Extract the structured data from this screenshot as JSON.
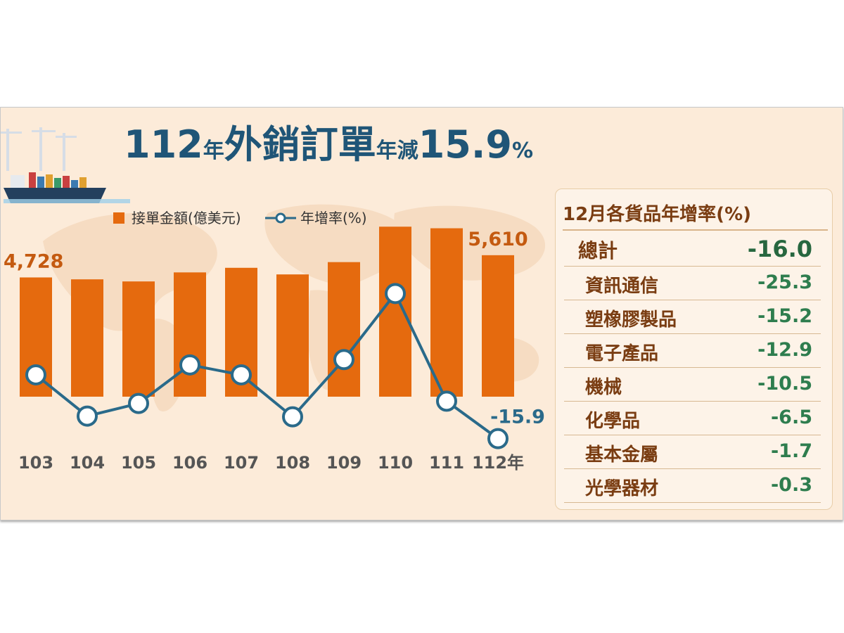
{
  "title": {
    "year": "112",
    "year_suffix": "年",
    "main": "外銷訂單",
    "mid": "年減",
    "rate": "15.9",
    "pct": "%"
  },
  "legend": {
    "bar_label": "接單金額(億美元)",
    "line_label": "年增率(%)"
  },
  "colors": {
    "bar": "#e56a0e",
    "line": "#2a6a8a",
    "title": "#1f5577",
    "value_label": "#c45a10",
    "panel_text": "#7a3d12",
    "panel_value": "#2e7d4e",
    "background": "#fcebd9"
  },
  "chart_data": {
    "type": "bar",
    "categories": [
      "103",
      "104",
      "105",
      "106",
      "107",
      "108",
      "109",
      "110",
      "111",
      "112年"
    ],
    "series": [
      {
        "name": "接單金額(億美元)",
        "type": "bar",
        "values": [
          4728,
          4653,
          4570,
          4928,
          5110,
          4848,
          5336,
          6741,
          6678,
          5610
        ]
      },
      {
        "name": "年增率(%)",
        "type": "line",
        "values": [
          0.8,
          -10.0,
          -6.7,
          3.4,
          0.8,
          -10.2,
          4.8,
          22.1,
          -6.1,
          -15.9
        ]
      }
    ],
    "data_labels": [
      {
        "series": 0,
        "index": 0,
        "text": "4,728"
      },
      {
        "series": 0,
        "index": 9,
        "text": "5,610"
      },
      {
        "series": 1,
        "index": 9,
        "text": "-15.9"
      }
    ],
    "bar_ylim": [
      0,
      7000
    ],
    "line_ylim": [
      -25,
      45
    ],
    "legend_position": "top"
  },
  "panel": {
    "title": "12月各貨品年增率(%)",
    "rows": [
      {
        "name": "總計",
        "value": "-16.0"
      },
      {
        "name": "資訊通信",
        "value": "-25.3"
      },
      {
        "name": "塑橡膠製品",
        "value": "-15.2"
      },
      {
        "name": "電子產品",
        "value": "-12.9"
      },
      {
        "name": "機械",
        "value": "-10.5"
      },
      {
        "name": "化學品",
        "value": "-6.5"
      },
      {
        "name": "基本金屬",
        "value": "-1.7"
      },
      {
        "name": "光學器材",
        "value": "-0.3"
      }
    ]
  }
}
